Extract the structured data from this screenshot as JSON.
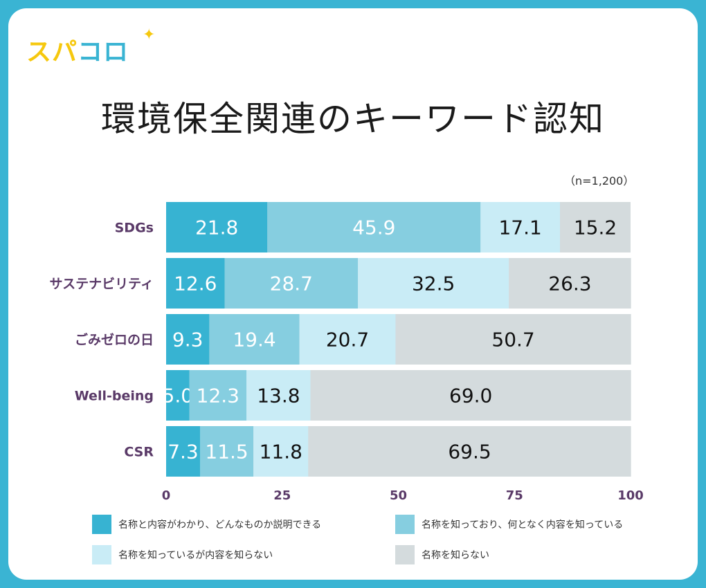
{
  "brand": {
    "part1": "スパ",
    "part2": "コロ",
    "spark": "✦"
  },
  "title": "環境保全関連のキーワード認知",
  "sample": "（n=1,200）",
  "chart_data": {
    "type": "bar",
    "orientation": "horizontal",
    "stacked": true,
    "title": "環境保全関連のキーワード認知",
    "categories": [
      "SDGs",
      "サステナビリティ",
      "ごみゼロの日",
      "Well-being",
      "CSR"
    ],
    "series": [
      {
        "name": "名称と内容がわかり、どんなものか説明できる",
        "color": "#37b3d2",
        "text_color": "#ffffff",
        "values": [
          21.8,
          12.6,
          9.3,
          5.0,
          7.3
        ]
      },
      {
        "name": "名称を知っており、何となく内容を知っている",
        "color": "#86cee0",
        "text_color": "#ffffff",
        "values": [
          45.9,
          28.7,
          19.4,
          12.3,
          11.5
        ]
      },
      {
        "name": "名称を知っているが内容を知らない",
        "color": "#c9ecf6",
        "text_color": "#111111",
        "values": [
          17.1,
          32.5,
          20.7,
          13.8,
          11.8
        ]
      },
      {
        "name": "名称を知らない",
        "color": "#d4dbdd",
        "text_color": "#111111",
        "values": [
          15.2,
          26.3,
          50.7,
          69.0,
          69.5
        ]
      }
    ],
    "xlim": [
      0,
      100
    ],
    "xticks": [
      "0",
      "25",
      "50",
      "75",
      "100"
    ],
    "axis_label_color": "#5a3a68",
    "legend_position": "bottom"
  }
}
